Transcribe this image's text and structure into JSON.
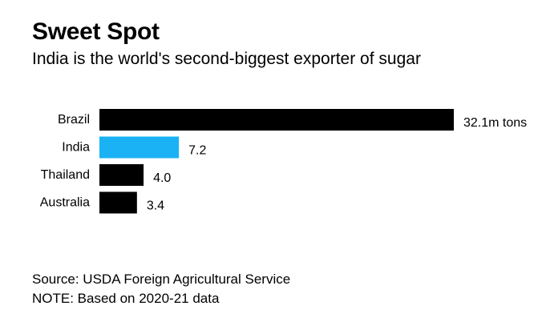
{
  "title": "Sweet Spot",
  "subtitle": "India is the world's second-biggest exporter of sugar",
  "source": "Source: USDA Foreign Agricultural Service",
  "note": "NOTE: Based on 2020-21 data",
  "colors": {
    "default_bar": "#000000",
    "highlight_bar": "#1ab2f5"
  },
  "chart_data": {
    "type": "bar",
    "orientation": "horizontal",
    "categories": [
      "Brazil",
      "India",
      "Thailand",
      "Australia"
    ],
    "values": [
      32.1,
      7.2,
      4.0,
      3.4
    ],
    "value_labels": [
      "32.1m tons",
      "7.2",
      "4.0",
      "3.4"
    ],
    "unit": "m tons",
    "highlight": "India",
    "title": "Sweet Spot",
    "subtitle": "India is the world's second-biggest exporter of sugar",
    "xlabel": "",
    "ylabel": "",
    "xlim": [
      0,
      32.1
    ],
    "grid": false,
    "legend": "none"
  }
}
